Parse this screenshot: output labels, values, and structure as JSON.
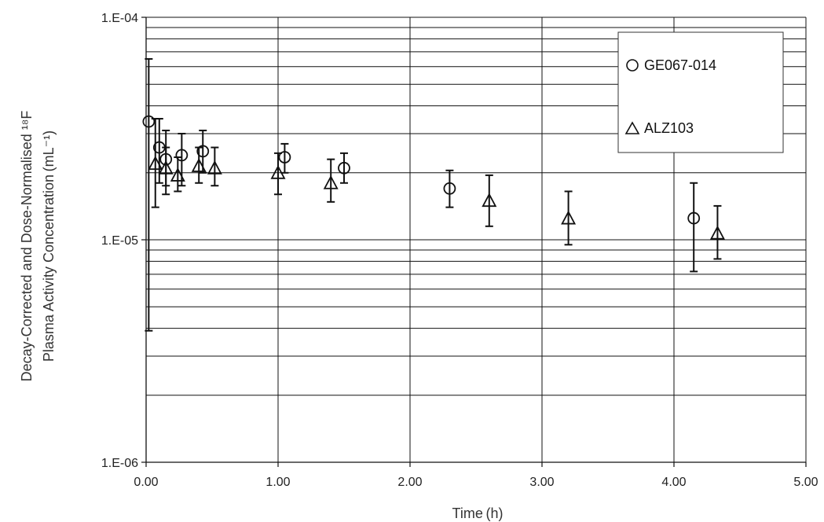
{
  "chart_data": {
    "type": "scatter",
    "title": "",
    "xlabel": "Time (h)",
    "ylabel_line1": "Decay-Corrected and Dose-Normalised ¹⁸F",
    "ylabel_line2": "Plasma Activity Concentration (mL⁻¹)",
    "xlim": [
      0,
      5
    ],
    "ylim": [
      1e-06,
      0.0001
    ],
    "yscale": "log",
    "grid": true,
    "legend_position": "top-right",
    "x_ticks": [
      0,
      1,
      2,
      3,
      4,
      5
    ],
    "x_tick_labels": [
      "0.00",
      "1.00",
      "2.00",
      "3.00",
      "4.00",
      "5.00"
    ],
    "y_ticks": [
      1e-06,
      1e-05,
      0.0001
    ],
    "y_tick_labels": [
      "1.E-06",
      "1.E-05",
      "1.E-04"
    ],
    "series": [
      {
        "name": "GE067-014",
        "marker": "circle",
        "x": [
          0.02,
          0.1,
          0.15,
          0.27,
          0.43,
          1.05,
          1.5,
          2.3,
          4.15
        ],
        "y": [
          3.4e-05,
          2.6e-05,
          2.3e-05,
          2.4e-05,
          2.5e-05,
          2.35e-05,
          2.1e-05,
          1.7e-05,
          1.25e-05
        ],
        "y_low": [
          3.9e-06,
          1.8e-05,
          1.6e-05,
          1.75e-05,
          2e-05,
          2e-05,
          1.8e-05,
          1.4e-05,
          7.2e-06
        ],
        "y_high": [
          6.5e-05,
          3.5e-05,
          3.1e-05,
          3e-05,
          3.1e-05,
          2.7e-05,
          2.45e-05,
          2.05e-05,
          1.8e-05
        ]
      },
      {
        "name": "ALZ103",
        "marker": "triangle",
        "x": [
          0.07,
          0.15,
          0.24,
          0.4,
          0.52,
          1.0,
          1.4,
          2.6,
          3.2,
          4.33
        ],
        "y": [
          2.2e-05,
          2.1e-05,
          1.95e-05,
          2.15e-05,
          2.1e-05,
          2e-05,
          1.8e-05,
          1.5e-05,
          1.25e-05,
          1.07e-05
        ],
        "y_low": [
          1.4e-05,
          1.75e-05,
          1.65e-05,
          1.8e-05,
          1.75e-05,
          1.6e-05,
          1.48e-05,
          1.15e-05,
          9.5e-06,
          8.2e-06
        ],
        "y_high": [
          3.5e-05,
          2.6e-05,
          2.35e-05,
          2.6e-05,
          2.6e-05,
          2.45e-05,
          2.3e-05,
          1.95e-05,
          1.65e-05,
          1.42e-05
        ]
      }
    ],
    "colors": {
      "ink": "#111111",
      "grid": "#111111",
      "legend_border": "#333333"
    }
  }
}
